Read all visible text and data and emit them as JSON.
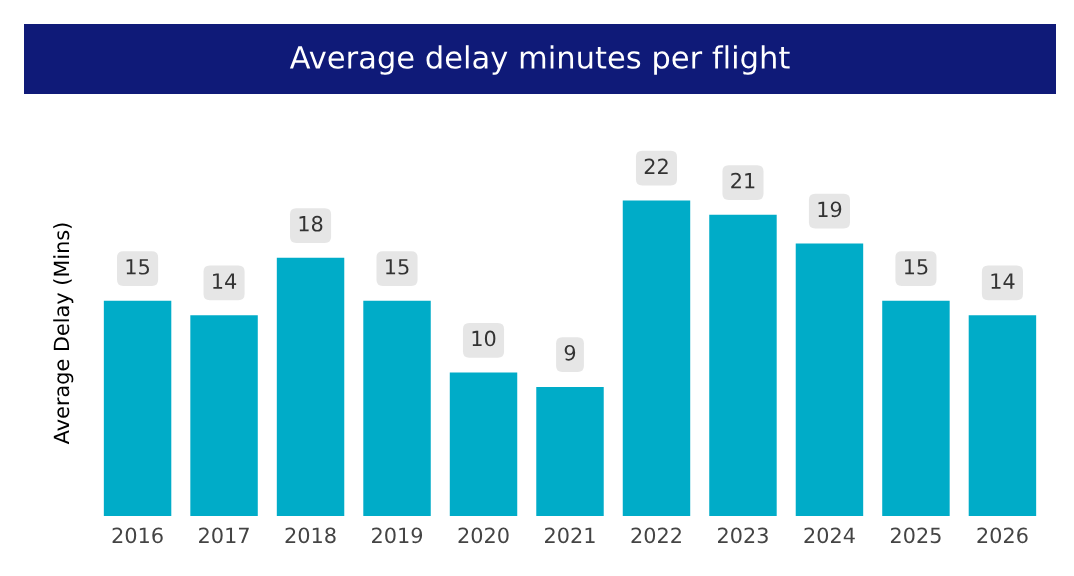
{
  "chart_data": {
    "type": "bar",
    "title": "Average delay minutes per flight",
    "ylabel": "Average Delay (Mins)",
    "categories": [
      "2016",
      "2017",
      "2018",
      "2019",
      "2020",
      "2021",
      "2022",
      "2023",
      "2024",
      "2025",
      "2026"
    ],
    "values": [
      15,
      14,
      18,
      15,
      10,
      9,
      22,
      21,
      19,
      15,
      14
    ],
    "color": "#00acc8",
    "data_labels": true,
    "tick_labels": "x",
    "grid": false,
    "legend": false
  }
}
